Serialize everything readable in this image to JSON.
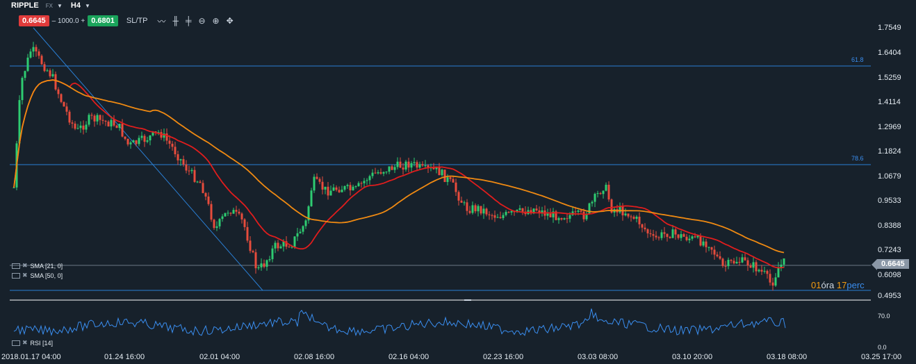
{
  "header": {
    "symbol": "RIPPLE",
    "market": "FX",
    "timeframe": "H4",
    "caret_icon": "chevron-down-icon"
  },
  "trade": {
    "sell_price": "0.6645",
    "quantity": "– 1000.0 +",
    "buy_price": "0.6801",
    "sltp_label": "SL/TP",
    "colors": {
      "sell": "#e13b3b",
      "buy": "#1aa45b"
    }
  },
  "tools": [
    "line-tool-icon",
    "candlestick-tool-icon",
    "bar-tool-icon",
    "zoom-out-icon",
    "zoom-in-icon",
    "crosshair-icon"
  ],
  "price_axis": {
    "ticks": [
      "1.7549",
      "1.6404",
      "1.5259",
      "1.4114",
      "1.2969",
      "1.1824",
      "1.0679",
      "0.9533",
      "0.8388",
      "0.7243",
      "0.6098",
      "0.4953"
    ],
    "current_price": "0.6645"
  },
  "time_axis": {
    "ticks": [
      "2018.01.17 04:00",
      "01.24 16:00",
      "02.01 04:00",
      "02.08 16:00",
      "02.16 04:00",
      "02.23 16:00",
      "03.03 08:00",
      "03.10 20:00",
      "03.18 08:00",
      "03.25 17:00"
    ]
  },
  "fib_levels": [
    "61.8",
    "78.6"
  ],
  "timer": {
    "hours": "01",
    "hours_unit": "óra",
    "minutes": "17",
    "minutes_unit": "perc"
  },
  "indicators": {
    "sma21": "SMA [21, 0]",
    "sma50": "SMA [50, 0]",
    "rsi": "RSI [14]",
    "rsi_levels": [
      "70.0",
      "0.0"
    ]
  },
  "colors": {
    "background": "#17212b",
    "up_candle": "#2ecc71",
    "down_candle": "#e74c3c",
    "sma21": "#e11d1d",
    "sma50": "#f08a12",
    "fib_line": "#2a7fd4",
    "rsi_line": "#3a8ef0"
  }
}
